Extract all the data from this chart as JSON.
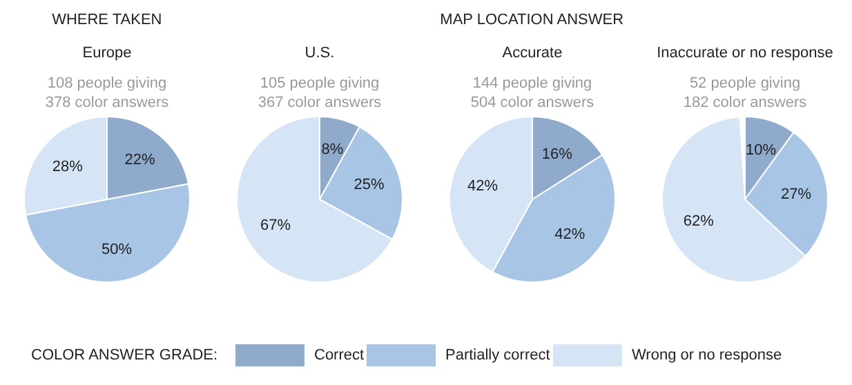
{
  "chart_data": [
    {
      "type": "pie",
      "annotations": [
        "WHERE TAKEN"
      ],
      "title": "Europe",
      "subtitle": "108 people giving\n378 color answers",
      "categories": [
        "Correct",
        "Partially correct",
        "Wrong or no response"
      ],
      "values": [
        22,
        50,
        28
      ],
      "colors": [
        "#8faacb",
        "#a9c5e6",
        "#d5e5f5"
      ],
      "value_labels": [
        "22%",
        "50%",
        "28%"
      ],
      "legend": "bottom",
      "legend_title": "COLOR ANSWER GRADE:"
    },
    {
      "type": "pie",
      "title": "U.S.",
      "subtitle": "105 people giving\n367 color answers",
      "values": [
        8,
        25,
        67
      ],
      "colors": [
        "#8faacb",
        "#a9c5e6",
        "#d5e5f5"
      ],
      "value_labels": [
        "8%",
        "25%",
        "67%"
      ]
    },
    {
      "type": "pie",
      "annotations": [
        "MAP LOCATION ANSWER"
      ],
      "title": "Accurate",
      "subtitle": "144 people giving\n504 color answers",
      "values": [
        16,
        42,
        42
      ],
      "colors": [
        "#8faacb",
        "#a9c5e6",
        "#d5e5f5"
      ],
      "value_labels": [
        "16%",
        "42%",
        "42%"
      ]
    },
    {
      "type": "pie",
      "title": "Inaccurate or no response",
      "subtitle": "52 people giving\n182 color answers",
      "values": [
        10,
        27,
        62
      ],
      "colors": [
        "#8faacb",
        "#a9c5e6",
        "#d5e5f5"
      ],
      "value_labels": [
        "10%",
        "27%",
        "62%"
      ]
    }
  ]
}
